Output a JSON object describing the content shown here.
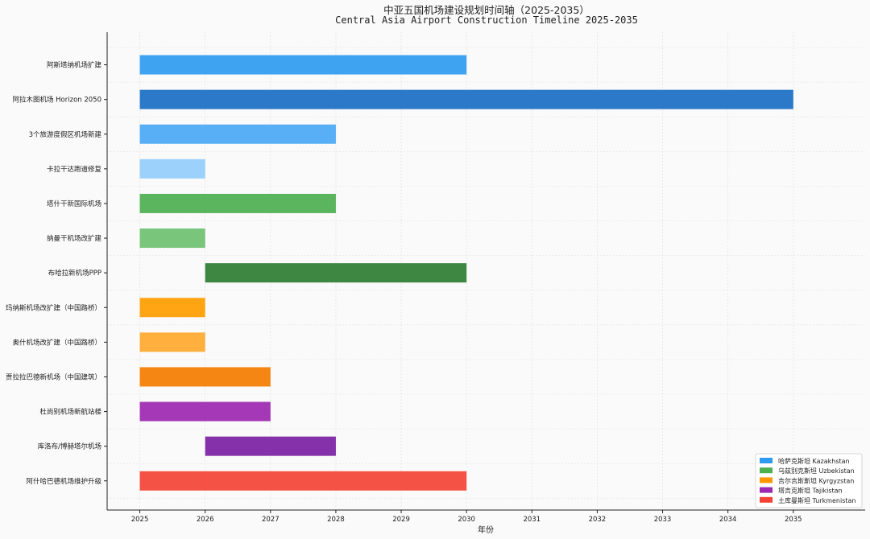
{
  "chart_data": {
    "type": "bar",
    "orientation": "horizontal-gantt",
    "title": "中亚五国机场建设规划时间轴（2025-2035）",
    "subtitle": "Central Asia Airport Construction Timeline 2025-2035",
    "xlabel": "年份",
    "ylabel": "",
    "xlim": [
      2024.5,
      2036.1
    ],
    "xticks": [
      2025,
      2026,
      2027,
      2028,
      2029,
      2030,
      2031,
      2032,
      2033,
      2034,
      2035
    ],
    "grid": true,
    "legend_position": "bottom-right",
    "legend": [
      {
        "label": "哈萨克斯坦 Kazakhstan",
        "color": "#2e9bf0"
      },
      {
        "label": "乌兹别克斯坦 Uzbekistan",
        "color": "#4caf50"
      },
      {
        "label": "吉尔吉斯斯坦 Kyrgyzstan",
        "color": "#ff9800"
      },
      {
        "label": "塔吉克斯坦 Tajikistan",
        "color": "#9c27b0"
      },
      {
        "label": "土库曼斯坦 Turkmenistan",
        "color": "#f44336"
      }
    ],
    "tasks": [
      {
        "name": "阿斯塔纳机场扩建",
        "start": 2025,
        "end": 2030,
        "country": "哈萨克斯坦 Kazakhstan",
        "color": "#2e9bf0"
      },
      {
        "name": "阿拉木图机场 Horizon 2050",
        "start": 2025,
        "end": 2035,
        "country": "哈萨克斯坦 Kazakhstan",
        "color": "#1a6ec5"
      },
      {
        "name": "3个旅游度假区机场新建",
        "start": 2025,
        "end": 2028,
        "country": "哈萨克斯坦 Kazakhstan",
        "color": "#4aa8f5"
      },
      {
        "name": "卡拉干达跑道修复",
        "start": 2025,
        "end": 2026,
        "country": "哈萨克斯坦 Kazakhstan",
        "color": "#93cdfa"
      },
      {
        "name": "塔什干新国际机场",
        "start": 2025,
        "end": 2028,
        "country": "乌兹别克斯坦 Uzbekistan",
        "color": "#4caf50"
      },
      {
        "name": "纳曼干机场改扩建",
        "start": 2025,
        "end": 2026,
        "country": "乌兹别克斯坦 Uzbekistan",
        "color": "#6cc070"
      },
      {
        "name": "布哈拉新机场PPP",
        "start": 2026,
        "end": 2030,
        "country": "乌兹别克斯坦 Uzbekistan",
        "color": "#2e7d32"
      },
      {
        "name": "玛纳斯机场改扩建（中国路桥）",
        "start": 2025,
        "end": 2026,
        "country": "吉尔吉斯斯坦 Kyrgyzstan",
        "color": "#ff9d00"
      },
      {
        "name": "奥什机场改扩建（中国路桥）",
        "start": 2025,
        "end": 2026,
        "country": "吉尔吉斯斯坦 Kyrgyzstan",
        "color": "#ffa82e"
      },
      {
        "name": "贾拉拉巴德新机场（中国建筑）",
        "start": 2025,
        "end": 2027,
        "country": "吉尔吉斯斯坦 Kyrgyzstan",
        "color": "#f57c00"
      },
      {
        "name": "杜尚别机场新航站楼",
        "start": 2025,
        "end": 2027,
        "country": "塔吉克斯坦 Tajikistan",
        "color": "#9c27b0"
      },
      {
        "name": "库洛布/博赫塔尔机场",
        "start": 2026,
        "end": 2028,
        "country": "塔吉克斯坦 Tajikistan",
        "color": "#7b1fa2"
      },
      {
        "name": "阿什哈巴德机场维护升级",
        "start": 2025,
        "end": 2030,
        "country": "土库曼斯坦 Turkmenistan",
        "color": "#f44336"
      }
    ]
  }
}
